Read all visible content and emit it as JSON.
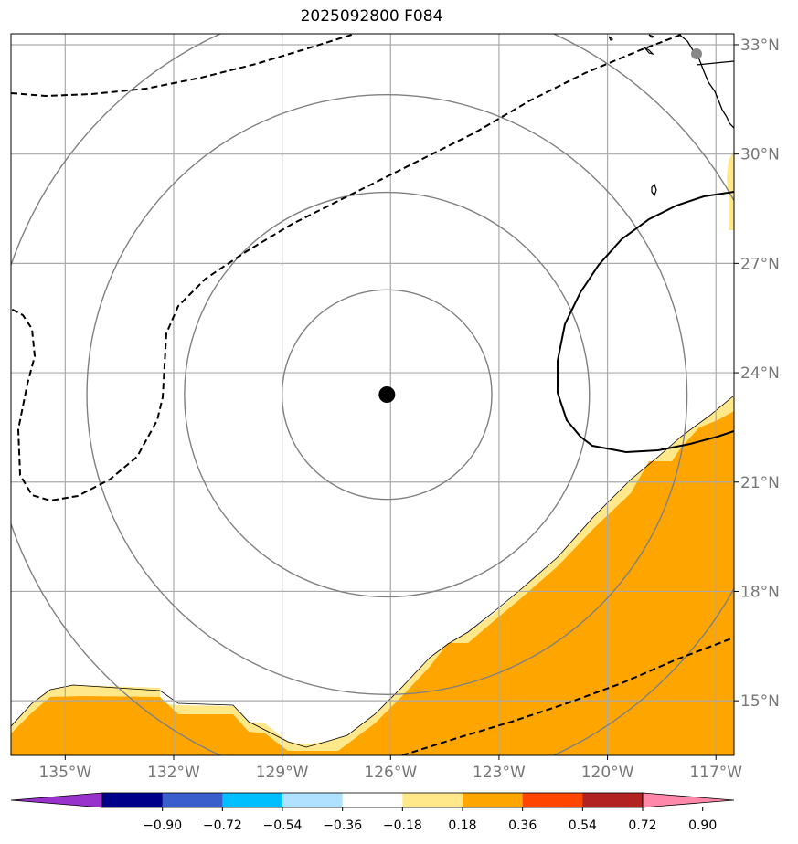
{
  "title": "2025092800 F084",
  "map": {
    "lon_range": [
      -136.5,
      -116.5
    ],
    "lat_range": [
      13.5,
      33.3
    ],
    "lon_ticks": [
      {
        "value": -135,
        "label": "135°W"
      },
      {
        "value": -132,
        "label": "132°W"
      },
      {
        "value": -129,
        "label": "129°W"
      },
      {
        "value": -126,
        "label": "126°W"
      },
      {
        "value": -123,
        "label": "123°W"
      },
      {
        "value": -120,
        "label": "120°W"
      },
      {
        "value": -117,
        "label": "117°W"
      }
    ],
    "lat_ticks": [
      {
        "value": 15,
        "label": "15°N"
      },
      {
        "value": 18,
        "label": "18°N"
      },
      {
        "value": 21,
        "label": "21°N"
      },
      {
        "value": 24,
        "label": "24°N"
      },
      {
        "value": 27,
        "label": "27°N"
      },
      {
        "value": 30,
        "label": "30°N"
      },
      {
        "value": 33,
        "label": "33°N"
      }
    ],
    "center": {
      "lon": -126.1,
      "lat": 23.4
    },
    "range_rings_deg": [
      2.9,
      5.6,
      8.3,
      11.0
    ],
    "colors": {
      "grid": "#aaaaaa",
      "ring": "#808080",
      "fill_orange": "#ffa500",
      "fill_yellow": "#ffe88a",
      "contour": "#000000",
      "city": "#888888"
    }
  },
  "colorbar": {
    "labels": [
      "−0.90",
      "−0.72",
      "−0.54",
      "−0.36",
      "−0.18",
      "0.18",
      "0.36",
      "0.54",
      "0.72",
      "0.90"
    ],
    "colors": [
      "#9932cc",
      "#00008b",
      "#3a5fcd",
      "#00bfff",
      "#b0e2ff",
      "#ffffff",
      "#ffe88a",
      "#ffa500",
      "#ff4500",
      "#b22222",
      "#ff88aa"
    ]
  }
}
